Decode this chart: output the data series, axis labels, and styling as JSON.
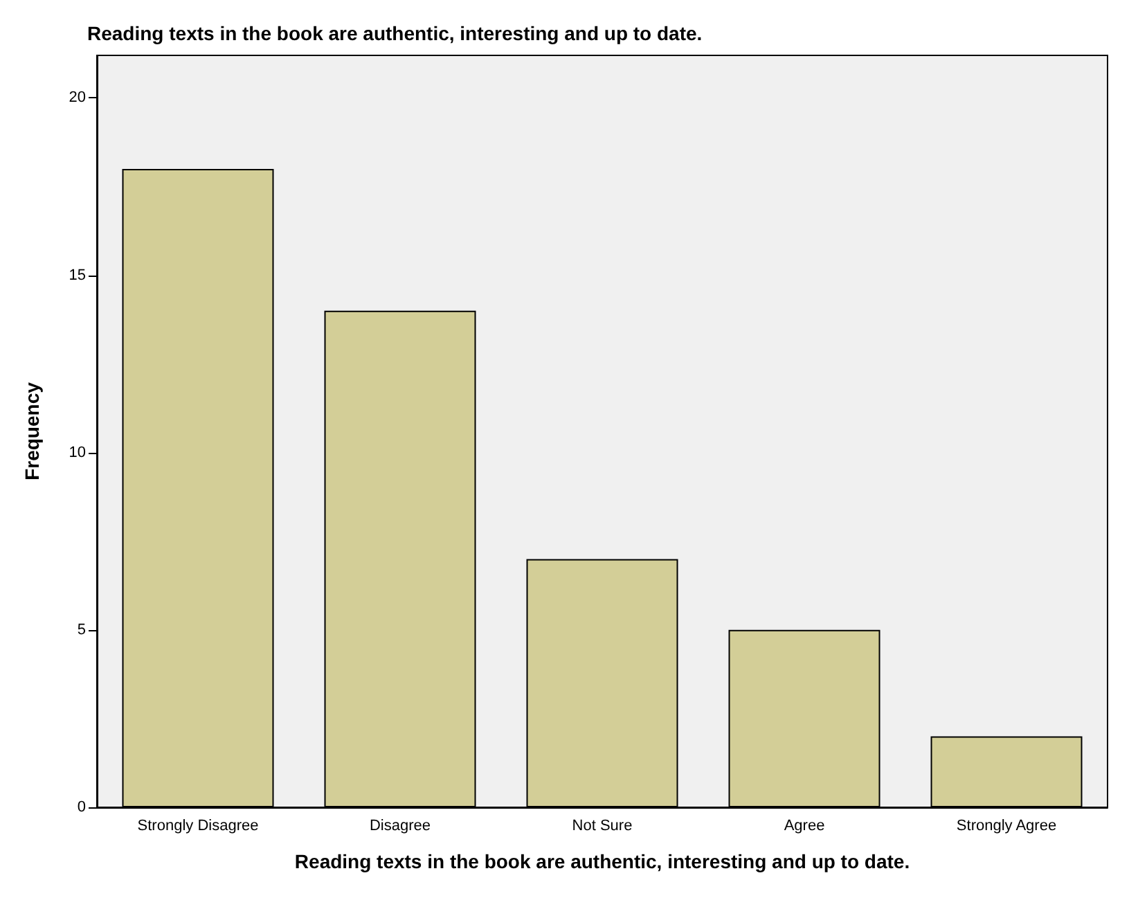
{
  "chart_data": {
    "type": "bar",
    "title": "Reading texts in the book are authentic, interesting and up to date.",
    "xlabel": "Reading texts in the book are authentic, interesting and up to date.",
    "ylabel": "Frequency",
    "categories": [
      "Strongly Disagree",
      "Disagree",
      "Not Sure",
      "Agree",
      "Strongly Agree"
    ],
    "values": [
      18,
      14,
      7,
      5,
      2
    ],
    "color": "#d3ce97",
    "ylim": [
      0,
      21.2
    ],
    "yticks": [
      0,
      5,
      10,
      15,
      20
    ],
    "grid": false
  }
}
